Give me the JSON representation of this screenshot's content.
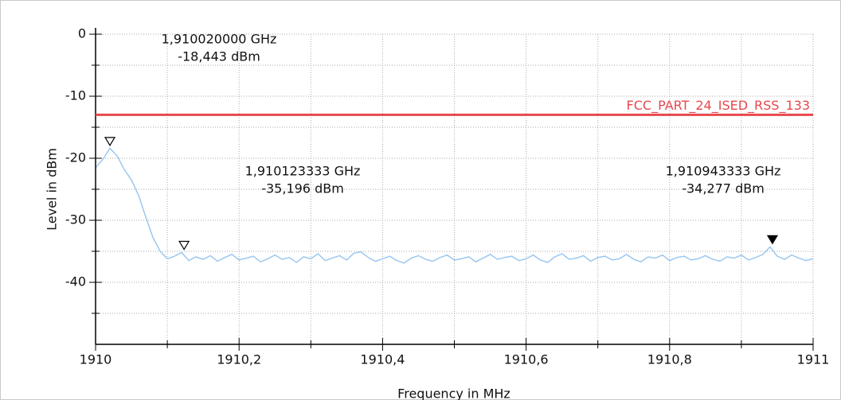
{
  "chart_data": {
    "type": "line",
    "xlabel": "Frequency in MHz",
    "ylabel": "Level in dBm",
    "xlim": [
      1910,
      1911
    ],
    "ylim": [
      -50,
      0
    ],
    "xticks": [
      1910,
      {
        "value": 1910.2,
        "label": "1910,2"
      },
      {
        "value": 1910.4,
        "label": "1910,4"
      },
      {
        "value": 1910.6,
        "label": "1910,6"
      },
      {
        "value": 1910.8,
        "label": "1910,8"
      },
      1911
    ],
    "xminorticks": [
      1910.1,
      1910.3,
      1910.5,
      1910.7,
      1910.9
    ],
    "yticks": [
      0,
      -10,
      -20,
      -30,
      -40
    ],
    "yminorticks": [
      -5,
      -15,
      -25,
      -35,
      -45
    ],
    "grid": true,
    "color": "#9cc8f0",
    "x": [
      1910,
      1910.01,
      1910.02,
      1910.03,
      1910.04,
      1910.05,
      1910.06,
      1910.07,
      1910.08,
      1910.09,
      1910.1,
      1910.11,
      1910.12,
      1910.13,
      1910.14,
      1910.15,
      1910.16,
      1910.17,
      1910.18,
      1910.19,
      1910.2,
      1910.21,
      1910.22,
      1910.23,
      1910.24,
      1910.25,
      1910.26,
      1910.27,
      1910.28,
      1910.29,
      1910.3,
      1910.31,
      1910.32,
      1910.33,
      1910.34,
      1910.35,
      1910.36,
      1910.37,
      1910.38,
      1910.39,
      1910.4,
      1910.41,
      1910.42,
      1910.43,
      1910.44,
      1910.45,
      1910.46,
      1910.47,
      1910.48,
      1910.49,
      1910.5,
      1910.51,
      1910.52,
      1910.53,
      1910.54,
      1910.55,
      1910.56,
      1910.57,
      1910.58,
      1910.59,
      1910.6,
      1910.61,
      1910.62,
      1910.63,
      1910.64,
      1910.65,
      1910.66,
      1910.67,
      1910.68,
      1910.69,
      1910.7,
      1910.71,
      1910.72,
      1910.73,
      1910.74,
      1910.75,
      1910.76,
      1910.77,
      1910.78,
      1910.79,
      1910.8,
      1910.81,
      1910.82,
      1910.83,
      1910.84,
      1910.85,
      1910.86,
      1910.87,
      1910.88,
      1910.89,
      1910.9,
      1910.91,
      1910.92,
      1910.93,
      1910.94,
      1910.95,
      1910.96,
      1910.97,
      1910.98,
      1910.99,
      1911
    ],
    "values": [
      -21.5,
      -20.2,
      -18.4,
      -19.6,
      -21.8,
      -23.5,
      -26.0,
      -29.5,
      -32.8,
      -35.0,
      -36.2,
      -35.8,
      -35.2,
      -36.5,
      -35.9,
      -36.3,
      -35.7,
      -36.6,
      -36.0,
      -35.5,
      -36.4,
      -36.1,
      -35.8,
      -36.7,
      -36.2,
      -35.6,
      -36.3,
      -36.0,
      -36.8,
      -35.9,
      -36.2,
      -35.4,
      -36.5,
      -36.1,
      -35.7,
      -36.4,
      -35.3,
      -35.1,
      -36.0,
      -36.6,
      -36.2,
      -35.8,
      -36.5,
      -36.9,
      -36.1,
      -35.7,
      -36.3,
      -36.6,
      -36.0,
      -35.6,
      -36.4,
      -36.2,
      -35.9,
      -36.7,
      -36.1,
      -35.5,
      -36.3,
      -36.0,
      -35.8,
      -36.5,
      -36.2,
      -35.6,
      -36.4,
      -36.8,
      -35.9,
      -35.4,
      -36.3,
      -36.1,
      -35.7,
      -36.6,
      -36.0,
      -35.8,
      -36.4,
      -36.2,
      -35.5,
      -36.3,
      -36.7,
      -35.9,
      -36.1,
      -35.6,
      -36.5,
      -36.0,
      -35.8,
      -36.4,
      -36.2,
      -35.7,
      -36.3,
      -36.6,
      -35.9,
      -36.1,
      -35.6,
      -36.4,
      -36.0,
      -35.5,
      -34.3,
      -35.8,
      -36.3,
      -35.6,
      -36.1,
      -36.5,
      -36.2
    ],
    "limit_line": {
      "name": "FCC_PART_24_ISED_RSS_133",
      "value": -13,
      "color": "#e8484d"
    },
    "markers": [
      {
        "x": 1910.02,
        "y": -18.443,
        "freq_label": "1,910020000 GHz",
        "level_label": "-18,443 dBm",
        "filled": false
      },
      {
        "x": 1910.123333,
        "y": -35.196,
        "freq_label": "1,910123333 GHz",
        "level_label": "-35,196 dBm",
        "filled": false
      },
      {
        "x": 1910.943333,
        "y": -34.277,
        "freq_label": "1,910943333 GHz",
        "level_label": "-34,277 dBm",
        "filled": true
      }
    ]
  }
}
